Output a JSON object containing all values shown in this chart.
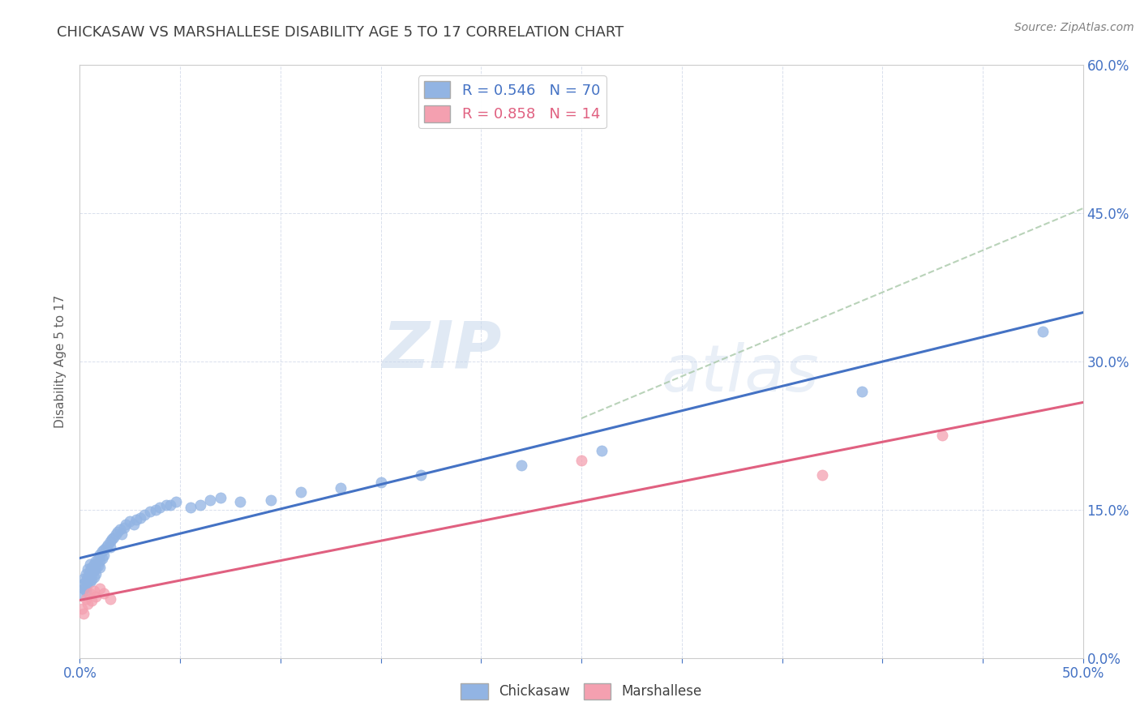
{
  "title": "CHICKASAW VS MARSHALLESE DISABILITY AGE 5 TO 17 CORRELATION CHART",
  "source_text": "Source: ZipAtlas.com",
  "ylabel": "Disability Age 5 to 17",
  "xlim": [
    0.0,
    0.5
  ],
  "ylim": [
    0.0,
    0.6
  ],
  "xticks": [
    0.0,
    0.05,
    0.1,
    0.15,
    0.2,
    0.25,
    0.3,
    0.35,
    0.4,
    0.45,
    0.5
  ],
  "ytick_labels_right": [
    "0.0%",
    "15.0%",
    "30.0%",
    "45.0%",
    "60.0%"
  ],
  "yticks_right": [
    0.0,
    0.15,
    0.3,
    0.45,
    0.6
  ],
  "chickasaw_color": "#92b4e3",
  "marshallese_color": "#f4a0b0",
  "trend_chickasaw_color": "#4472c4",
  "trend_marshallese_color": "#e06080",
  "diagonal_color": "#a8c8a8",
  "r_chickasaw": 0.546,
  "n_chickasaw": 70,
  "r_marshallese": 0.858,
  "n_marshallese": 14,
  "watermark_zip": "ZIP",
  "watermark_atlas": "atlas",
  "background_color": "#ffffff",
  "grid_color": "#d0d8e8",
  "title_color": "#404040",
  "axis_label_color": "#606060",
  "tick_color_blue": "#4472c4",
  "chickasaw_x": [
    0.001,
    0.002,
    0.002,
    0.002,
    0.003,
    0.003,
    0.003,
    0.003,
    0.004,
    0.004,
    0.004,
    0.005,
    0.005,
    0.005,
    0.005,
    0.006,
    0.006,
    0.006,
    0.007,
    0.007,
    0.007,
    0.008,
    0.008,
    0.008,
    0.009,
    0.009,
    0.01,
    0.01,
    0.01,
    0.011,
    0.011,
    0.012,
    0.012,
    0.013,
    0.014,
    0.015,
    0.015,
    0.016,
    0.017,
    0.018,
    0.019,
    0.02,
    0.021,
    0.022,
    0.023,
    0.025,
    0.027,
    0.028,
    0.03,
    0.032,
    0.035,
    0.038,
    0.04,
    0.043,
    0.045,
    0.048,
    0.055,
    0.06,
    0.065,
    0.07,
    0.08,
    0.095,
    0.11,
    0.13,
    0.15,
    0.17,
    0.22,
    0.26,
    0.39,
    0.48
  ],
  "chickasaw_y": [
    0.065,
    0.08,
    0.075,
    0.07,
    0.085,
    0.078,
    0.072,
    0.068,
    0.09,
    0.082,
    0.076,
    0.088,
    0.095,
    0.083,
    0.077,
    0.092,
    0.086,
    0.079,
    0.095,
    0.088,
    0.082,
    0.098,
    0.091,
    0.085,
    0.1,
    0.093,
    0.105,
    0.098,
    0.092,
    0.108,
    0.101,
    0.11,
    0.104,
    0.112,
    0.115,
    0.118,
    0.112,
    0.12,
    0.122,
    0.125,
    0.128,
    0.13,
    0.125,
    0.132,
    0.135,
    0.138,
    0.135,
    0.14,
    0.142,
    0.145,
    0.148,
    0.15,
    0.152,
    0.155,
    0.155,
    0.158,
    0.152,
    0.155,
    0.16,
    0.162,
    0.158,
    0.16,
    0.168,
    0.172,
    0.178,
    0.185,
    0.195,
    0.21,
    0.27,
    0.33
  ],
  "marshallese_x": [
    0.001,
    0.002,
    0.003,
    0.004,
    0.005,
    0.006,
    0.007,
    0.008,
    0.01,
    0.012,
    0.015,
    0.25,
    0.37,
    0.43
  ],
  "marshallese_y": [
    0.05,
    0.045,
    0.06,
    0.055,
    0.065,
    0.058,
    0.068,
    0.062,
    0.07,
    0.065,
    0.06,
    0.2,
    0.185,
    0.225
  ],
  "legend_r_chickasaw": "R = 0.546",
  "legend_n_chickasaw": "N = 70",
  "legend_r_marshallese": "R = 0.858",
  "legend_n_marshallese": "N = 14"
}
